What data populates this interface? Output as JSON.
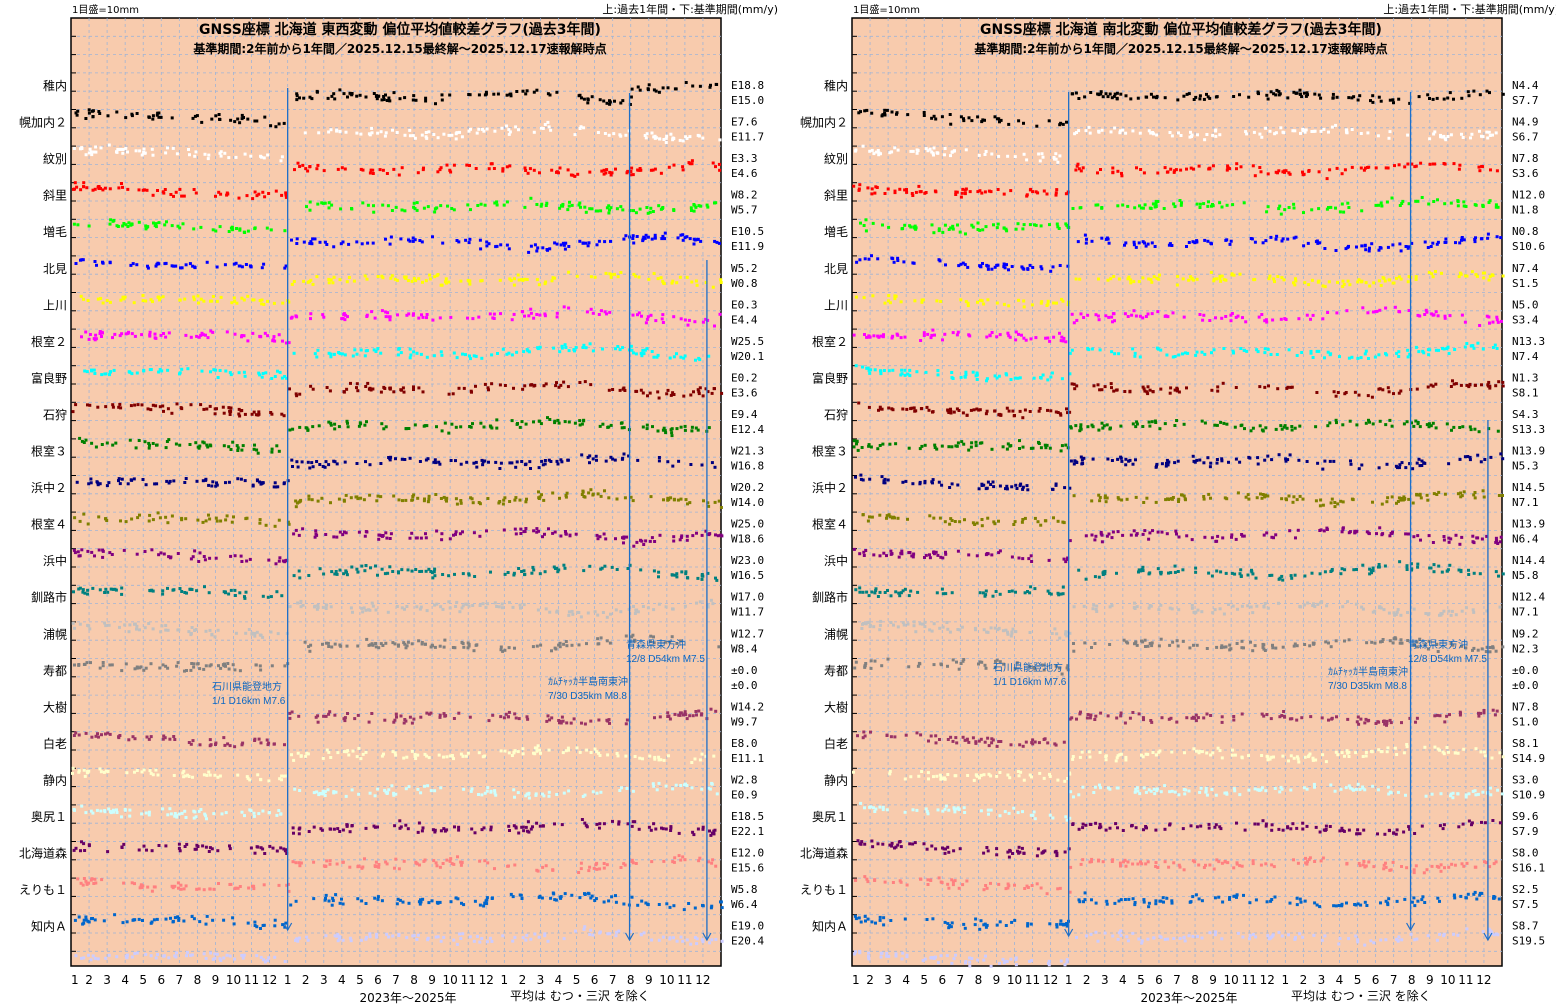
{
  "header": {
    "scale_note": "1目盛=10mm",
    "legend_note": "上:過去1年間・下:基準期間(mm/y)"
  },
  "footer": {
    "period": "2023年～2025年",
    "note": "平均は むつ・三沢 を除く"
  },
  "month_ticks": [
    "1",
    "2",
    "3",
    "4",
    "5",
    "6",
    "7",
    "8",
    "9",
    "10",
    "11",
    "12",
    "1",
    "2",
    "3",
    "4",
    "5",
    "6",
    "7",
    "8",
    "9",
    "10",
    "11",
    "12",
    "1",
    "2",
    "3",
    "4",
    "5",
    "6",
    "7",
    "8",
    "9",
    "10",
    "11",
    "12"
  ],
  "events": [
    {
      "name": "石川県能登地方",
      "detail": "1/1 D16km M7.6",
      "date": "2024-01-01",
      "t": 1.0
    },
    {
      "name": "ｶﾑﾁｬｯｶ半島南東沖",
      "detail": "7/30 D35km M8.8",
      "date": "2025-07-30",
      "t": 2.578
    },
    {
      "name": "青森県東方沖",
      "detail": "12/8 D54km M7.5",
      "date": "2025-12-08",
      "t": 2.935
    }
  ],
  "colors": {
    "background": "#f8cbad",
    "event_line": "#1e6fc8",
    "annotation": "#0a66c2"
  },
  "chart_data": [
    {
      "type": "scatter",
      "title": "GNSS座標 北海道 東西変動 偏位平均値較差グラフ(過去3年間)",
      "subtitle": "基準期間:2年前から1年間／2025.12.15最終解～2025.12.17速報解時点",
      "xlabel": "2023年～2025年",
      "ylabel": "",
      "component": "EW",
      "units": "mm/y",
      "grid": true,
      "series": [
        {
          "name": "稚内",
          "color": "#000000",
          "rate_recent": "E18.8",
          "rate_ref": "E15.0"
        },
        {
          "name": "幌加内２",
          "color": "#ffffff",
          "rate_recent": "E7.6",
          "rate_ref": "E11.7"
        },
        {
          "name": "紋別",
          "color": "#ff0000",
          "rate_recent": "E3.3",
          "rate_ref": "E4.6"
        },
        {
          "name": "斜里",
          "color": "#00ff00",
          "rate_recent": "W8.2",
          "rate_ref": "W5.7"
        },
        {
          "name": "増毛",
          "color": "#0000ff",
          "rate_recent": "E10.5",
          "rate_ref": "E11.9"
        },
        {
          "name": "北見",
          "color": "#ffff00",
          "rate_recent": "W5.2",
          "rate_ref": "W0.8"
        },
        {
          "name": "上川",
          "color": "#ff00ff",
          "rate_recent": "E0.3",
          "rate_ref": "E4.4"
        },
        {
          "name": "根室２",
          "color": "#00ffff",
          "rate_recent": "W25.5",
          "rate_ref": "W20.1"
        },
        {
          "name": "富良野",
          "color": "#800000",
          "rate_recent": "E0.2",
          "rate_ref": "E3.6"
        },
        {
          "name": "石狩",
          "color": "#008000",
          "rate_recent": "E9.4",
          "rate_ref": "E12.4"
        },
        {
          "name": "根室３",
          "color": "#000080",
          "rate_recent": "W21.3",
          "rate_ref": "W16.8"
        },
        {
          "name": "浜中２",
          "color": "#808000",
          "rate_recent": "W20.2",
          "rate_ref": "W14.0"
        },
        {
          "name": "根室４",
          "color": "#800080",
          "rate_recent": "W25.0",
          "rate_ref": "W18.6"
        },
        {
          "name": "浜中",
          "color": "#008080",
          "rate_recent": "W23.0",
          "rate_ref": "W16.5"
        },
        {
          "name": "釧路市",
          "color": "#c0c0c0",
          "rate_recent": "W17.0",
          "rate_ref": "W11.7"
        },
        {
          "name": "浦幌",
          "color": "#808080",
          "rate_recent": "W12.7",
          "rate_ref": "W8.4"
        },
        {
          "name": "寿都",
          "color": "#999999",
          "rate_recent": "±0.0",
          "rate_ref": "±0.0"
        },
        {
          "name": "大樹",
          "color": "#993366",
          "rate_recent": "W14.2",
          "rate_ref": "W9.7"
        },
        {
          "name": "白老",
          "color": "#ffffcc",
          "rate_recent": "E8.0",
          "rate_ref": "E11.1"
        },
        {
          "name": "静内",
          "color": "#ccffff",
          "rate_recent": "W2.8",
          "rate_ref": "E0.9"
        },
        {
          "name": "奥尻１",
          "color": "#660066",
          "rate_recent": "E18.5",
          "rate_ref": "E22.1"
        },
        {
          "name": "北海道森",
          "color": "#ff8080",
          "rate_recent": "E12.0",
          "rate_ref": "E15.6"
        },
        {
          "name": "えりも１",
          "color": "#0066cc",
          "rate_recent": "W5.8",
          "rate_ref": "W6.4"
        },
        {
          "name": "知内Ａ",
          "color": "#ccccff",
          "rate_recent": "E19.0",
          "rate_ref": "E20.4"
        }
      ]
    },
    {
      "type": "scatter",
      "title": "GNSS座標 北海道 南北変動 偏位平均値較差グラフ(過去3年間)",
      "subtitle": "基準期間:2年前から1年間／2025.12.15最終解～2025.12.17速報解時点",
      "xlabel": "2023年～2025年",
      "ylabel": "",
      "component": "NS",
      "units": "mm/y",
      "grid": true,
      "series": [
        {
          "name": "稚内",
          "color": "#000000",
          "rate_recent": "N4.4",
          "rate_ref": "S7.7"
        },
        {
          "name": "幌加内２",
          "color": "#ffffff",
          "rate_recent": "N4.9",
          "rate_ref": "S6.7"
        },
        {
          "name": "紋別",
          "color": "#ff0000",
          "rate_recent": "N7.8",
          "rate_ref": "S3.6"
        },
        {
          "name": "斜里",
          "color": "#00ff00",
          "rate_recent": "N12.0",
          "rate_ref": "N1.8"
        },
        {
          "name": "増毛",
          "color": "#0000ff",
          "rate_recent": "N0.8",
          "rate_ref": "S10.6"
        },
        {
          "name": "北見",
          "color": "#ffff00",
          "rate_recent": "N7.4",
          "rate_ref": "S1.5"
        },
        {
          "name": "上川",
          "color": "#ff00ff",
          "rate_recent": "N5.0",
          "rate_ref": "S3.4"
        },
        {
          "name": "根室２",
          "color": "#00ffff",
          "rate_recent": "N13.3",
          "rate_ref": "N7.4"
        },
        {
          "name": "富良野",
          "color": "#800000",
          "rate_recent": "N1.3",
          "rate_ref": "S8.1"
        },
        {
          "name": "石狩",
          "color": "#008000",
          "rate_recent": "S4.3",
          "rate_ref": "S13.3"
        },
        {
          "name": "根室３",
          "color": "#000080",
          "rate_recent": "N13.9",
          "rate_ref": "N5.3"
        },
        {
          "name": "浜中２",
          "color": "#808000",
          "rate_recent": "N14.5",
          "rate_ref": "N7.1"
        },
        {
          "name": "根室４",
          "color": "#800080",
          "rate_recent": "N13.9",
          "rate_ref": "N6.4"
        },
        {
          "name": "浜中",
          "color": "#008080",
          "rate_recent": "N14.4",
          "rate_ref": "N5.8"
        },
        {
          "name": "釧路市",
          "color": "#c0c0c0",
          "rate_recent": "N12.4",
          "rate_ref": "N7.1"
        },
        {
          "name": "浦幌",
          "color": "#808080",
          "rate_recent": "N9.2",
          "rate_ref": "N2.3"
        },
        {
          "name": "寿都",
          "color": "#999999",
          "rate_recent": "±0.0",
          "rate_ref": "±0.0"
        },
        {
          "name": "大樹",
          "color": "#993366",
          "rate_recent": "N7.8",
          "rate_ref": "S1.0"
        },
        {
          "name": "白老",
          "color": "#ffffcc",
          "rate_recent": "S8.1",
          "rate_ref": "S14.9"
        },
        {
          "name": "静内",
          "color": "#ccffff",
          "rate_recent": "S3.0",
          "rate_ref": "S10.9"
        },
        {
          "name": "奥尻１",
          "color": "#660066",
          "rate_recent": "S9.6",
          "rate_ref": "S7.9"
        },
        {
          "name": "北海道森",
          "color": "#ff8080",
          "rate_recent": "S8.0",
          "rate_ref": "S16.1"
        },
        {
          "name": "えりも１",
          "color": "#0066cc",
          "rate_recent": "S2.5",
          "rate_ref": "S7.5"
        },
        {
          "name": "知内Ａ",
          "color": "#ccccff",
          "rate_recent": "S8.7",
          "rate_ref": "S19.5"
        }
      ]
    }
  ]
}
